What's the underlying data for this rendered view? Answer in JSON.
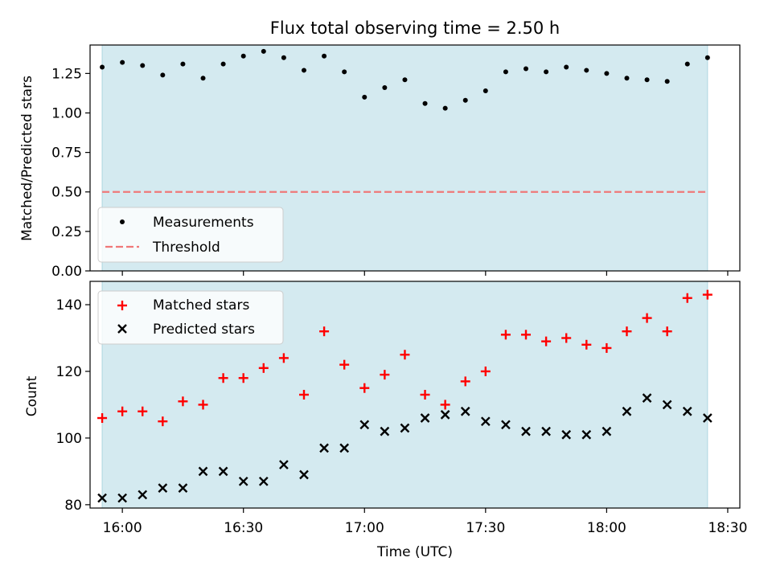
{
  "figure": {
    "title": "Flux total observing time = 2.50 h",
    "xlabel": "Time (UTC)",
    "x_ticks": [
      {
        "t": 60,
        "label": "16:00"
      },
      {
        "t": 90,
        "label": "16:30"
      },
      {
        "t": 120,
        "label": "17:00"
      },
      {
        "t": 150,
        "label": "17:30"
      },
      {
        "t": 180,
        "label": "18:00"
      },
      {
        "t": 210,
        "label": "18:30"
      }
    ]
  },
  "chart_data": [
    {
      "type": "scatter",
      "ylabel": "Matched/Predicted stars",
      "xlim": [
        "15:52",
        "18:33"
      ],
      "ylim": [
        0,
        1.43
      ],
      "y_ticks": [
        "0.00",
        "0.25",
        "0.50",
        "0.75",
        "1.00",
        "1.25"
      ],
      "observing_window": [
        "15:55",
        "18:25"
      ],
      "observing_window_color": "#d4eaf0",
      "legend": {
        "placement": "lower-left"
      },
      "x": [
        "15:55",
        "16:00",
        "16:05",
        "16:10",
        "16:15",
        "16:20",
        "16:25",
        "16:30",
        "16:35",
        "16:40",
        "16:45",
        "16:50",
        "16:55",
        "17:00",
        "17:05",
        "17:10",
        "17:15",
        "17:20",
        "17:25",
        "17:30",
        "17:35",
        "17:40",
        "17:45",
        "17:50",
        "17:55",
        "18:00",
        "18:05",
        "18:10",
        "18:15",
        "18:20",
        "18:25"
      ],
      "series": [
        {
          "name": "Measurements",
          "marker": "dot",
          "color": "#000000",
          "values": [
            1.29,
            1.32,
            1.3,
            1.24,
            1.31,
            1.22,
            1.31,
            1.36,
            1.39,
            1.35,
            1.27,
            1.36,
            1.26,
            1.1,
            1.16,
            1.21,
            1.06,
            1.03,
            1.08,
            1.14,
            1.26,
            1.28,
            1.26,
            1.29,
            1.27,
            1.25,
            1.22,
            1.21,
            1.2,
            1.31,
            1.35
          ]
        },
        {
          "name": "Threshold",
          "marker": "dashed-line",
          "color": "#f07878",
          "x": [
            "15:55",
            "18:25"
          ],
          "values": [
            0.5,
            0.5
          ]
        }
      ]
    },
    {
      "type": "scatter",
      "ylabel": "Count",
      "xlim": [
        "15:52",
        "18:33"
      ],
      "ylim": [
        79,
        147
      ],
      "y_ticks": [
        "80",
        "100",
        "120",
        "140"
      ],
      "observing_window": [
        "15:55",
        "18:25"
      ],
      "observing_window_color": "#d4eaf0",
      "legend": {
        "placement": "upper-left"
      },
      "x": [
        "15:55",
        "16:00",
        "16:05",
        "16:10",
        "16:15",
        "16:20",
        "16:25",
        "16:30",
        "16:35",
        "16:40",
        "16:45",
        "16:50",
        "16:55",
        "17:00",
        "17:05",
        "17:10",
        "17:15",
        "17:20",
        "17:25",
        "17:30",
        "17:35",
        "17:40",
        "17:45",
        "17:50",
        "17:55",
        "18:00",
        "18:05",
        "18:10",
        "18:15",
        "18:20",
        "18:25"
      ],
      "series": [
        {
          "name": "Matched stars",
          "marker": "plus",
          "color": "#ff0000",
          "values": [
            106,
            108,
            108,
            105,
            111,
            110,
            118,
            118,
            121,
            124,
            113,
            132,
            122,
            115,
            119,
            125,
            113,
            110,
            117,
            120,
            131,
            131,
            129,
            130,
            128,
            127,
            132,
            136,
            132,
            142,
            143
          ]
        },
        {
          "name": "Predicted stars",
          "marker": "x",
          "color": "#000000",
          "values": [
            82,
            82,
            83,
            85,
            85,
            90,
            90,
            87,
            87,
            92,
            89,
            97,
            97,
            104,
            102,
            103,
            106,
            107,
            108,
            105,
            104,
            102,
            102,
            101,
            101,
            102,
            108,
            112,
            110,
            108,
            106
          ]
        }
      ]
    }
  ]
}
